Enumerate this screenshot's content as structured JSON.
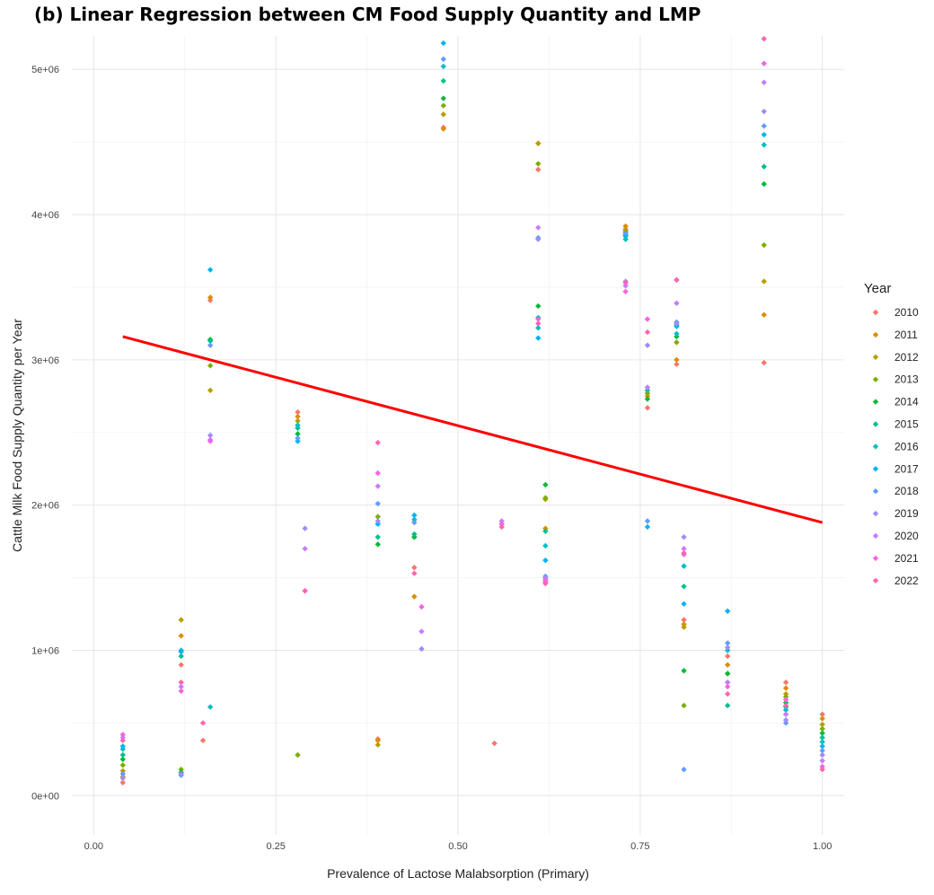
{
  "chart_data": {
    "type": "scatter",
    "title": "(b) Linear Regression between CM Food Supply Quantity and LMP",
    "xlabel": "Prevalence of Lactose Malabsorption (Primary)",
    "ylabel": "Cattle Milk Food Supply Quantity per Year",
    "xlim": [
      -0.03,
      1.03
    ],
    "ylim": [
      -270000,
      5230000
    ],
    "x_ticks": [
      {
        "value": 0,
        "label": "0.00"
      },
      {
        "value": 0.25,
        "label": "0.25"
      },
      {
        "value": 0.5,
        "label": "0.50"
      },
      {
        "value": 0.75,
        "label": "0.75"
      },
      {
        "value": 1,
        "label": "1.00"
      }
    ],
    "y_ticks": [
      {
        "value": 0,
        "label": "0e+00"
      },
      {
        "value": 1000000,
        "label": "1e+06"
      },
      {
        "value": 2000000,
        "label": "2e+06"
      },
      {
        "value": 3000000,
        "label": "3e+06"
      },
      {
        "value": 4000000,
        "label": "4e+06"
      },
      {
        "value": 5000000,
        "label": "5e+06"
      }
    ],
    "grid": true,
    "legend": {
      "title": "Year",
      "position": "right"
    },
    "series_colors": [
      "#F8766D",
      "#DE8C00",
      "#B79F00",
      "#7CAE00",
      "#00BA38",
      "#00C08B",
      "#00BFC4",
      "#00B4F0",
      "#619CFF",
      "#9F8CFF",
      "#C77CFF",
      "#F564E3",
      "#FF64B0"
    ],
    "series": [
      {
        "name": "2010",
        "points": [
          [
            0.04,
            90000
          ],
          [
            0.12,
            900000
          ],
          [
            0.15,
            380000
          ],
          [
            0.16,
            3410000
          ],
          [
            0.28,
            2640000
          ],
          [
            0.39,
            390000
          ],
          [
            0.44,
            1570000
          ],
          [
            0.48,
            4600000
          ],
          [
            0.55,
            360000
          ],
          [
            0.61,
            4310000
          ],
          [
            0.62,
            1470000
          ],
          [
            0.73,
            3900000
          ],
          [
            0.76,
            2670000
          ],
          [
            0.8,
            2970000
          ],
          [
            0.81,
            1210000
          ],
          [
            0.87,
            960000
          ],
          [
            0.92,
            2980000
          ],
          [
            0.95,
            780000
          ],
          [
            1.0,
            560000
          ]
        ]
      },
      {
        "name": "2011",
        "points": [
          [
            0.04,
            130000
          ],
          [
            0.12,
            1100000
          ],
          [
            0.16,
            3430000
          ],
          [
            0.28,
            2610000
          ],
          [
            0.39,
            380000
          ],
          [
            0.44,
            1370000
          ],
          [
            0.48,
            4590000
          ],
          [
            0.61,
            4490000
          ],
          [
            0.62,
            1840000
          ],
          [
            0.73,
            3920000
          ],
          [
            0.76,
            2750000
          ],
          [
            0.8,
            3000000
          ],
          [
            0.81,
            1180000
          ],
          [
            0.87,
            900000
          ],
          [
            0.92,
            3310000
          ],
          [
            0.95,
            740000
          ],
          [
            1.0,
            530000
          ]
        ]
      },
      {
        "name": "2012",
        "points": [
          [
            0.04,
            170000
          ],
          [
            0.12,
            1210000
          ],
          [
            0.16,
            2790000
          ],
          [
            0.28,
            2580000
          ],
          [
            0.39,
            350000
          ],
          [
            0.48,
            4690000
          ],
          [
            0.61,
            4490000
          ],
          [
            0.62,
            2040000
          ],
          [
            0.73,
            3890000
          ],
          [
            0.76,
            2790000
          ],
          [
            0.81,
            1160000
          ],
          [
            0.87,
            840000
          ],
          [
            0.92,
            3540000
          ],
          [
            0.95,
            700000
          ],
          [
            1.0,
            490000
          ]
        ]
      },
      {
        "name": "2013",
        "points": [
          [
            0.04,
            210000
          ],
          [
            0.12,
            180000
          ],
          [
            0.16,
            2960000
          ],
          [
            0.28,
            280000
          ],
          [
            0.39,
            1920000
          ],
          [
            0.44,
            1780000
          ],
          [
            0.48,
            4750000
          ],
          [
            0.61,
            4350000
          ],
          [
            0.62,
            2050000
          ],
          [
            0.73,
            3880000
          ],
          [
            0.76,
            2770000
          ],
          [
            0.8,
            3120000
          ],
          [
            0.81,
            620000
          ],
          [
            0.87,
            780000
          ],
          [
            0.92,
            3790000
          ],
          [
            0.95,
            680000
          ],
          [
            1.0,
            460000
          ]
        ]
      },
      {
        "name": "2014",
        "points": [
          [
            0.04,
            250000
          ],
          [
            0.12,
            160000
          ],
          [
            0.16,
            3140000
          ],
          [
            0.28,
            2490000
          ],
          [
            0.39,
            1730000
          ],
          [
            0.44,
            1780000
          ],
          [
            0.48,
            4800000
          ],
          [
            0.61,
            3370000
          ],
          [
            0.62,
            2140000
          ],
          [
            0.73,
            3860000
          ],
          [
            0.76,
            2730000
          ],
          [
            0.8,
            3160000
          ],
          [
            0.81,
            860000
          ],
          [
            0.87,
            840000
          ],
          [
            0.92,
            4210000
          ],
          [
            0.95,
            640000
          ],
          [
            1.0,
            430000
          ]
        ]
      },
      {
        "name": "2015",
        "points": [
          [
            0.04,
            280000
          ],
          [
            0.12,
            960000
          ],
          [
            0.16,
            3130000
          ],
          [
            0.28,
            2530000
          ],
          [
            0.39,
            1780000
          ],
          [
            0.44,
            1800000
          ],
          [
            0.48,
            4920000
          ],
          [
            0.61,
            3290000
          ],
          [
            0.62,
            1820000
          ],
          [
            0.73,
            3850000
          ],
          [
            0.76,
            2810000
          ],
          [
            0.8,
            3240000
          ],
          [
            0.81,
            1440000
          ],
          [
            0.87,
            620000
          ],
          [
            0.92,
            4330000
          ],
          [
            0.95,
            610000
          ],
          [
            1.0,
            400000
          ]
        ]
      },
      {
        "name": "2016",
        "points": [
          [
            0.04,
            320000
          ],
          [
            0.12,
            1000000
          ],
          [
            0.16,
            610000
          ],
          [
            0.28,
            2550000
          ],
          [
            0.39,
            1870000
          ],
          [
            0.44,
            1900000
          ],
          [
            0.48,
            5020000
          ],
          [
            0.61,
            3220000
          ],
          [
            0.62,
            1720000
          ],
          [
            0.73,
            3830000
          ],
          [
            0.76,
            2790000
          ],
          [
            0.8,
            3180000
          ],
          [
            0.81,
            1580000
          ],
          [
            0.87,
            1000000
          ],
          [
            0.92,
            4480000
          ],
          [
            0.95,
            590000
          ],
          [
            1.0,
            370000
          ]
        ]
      },
      {
        "name": "2017",
        "points": [
          [
            0.04,
            340000
          ],
          [
            0.12,
            990000
          ],
          [
            0.16,
            3620000
          ],
          [
            0.28,
            2440000
          ],
          [
            0.39,
            1870000
          ],
          [
            0.44,
            1930000
          ],
          [
            0.48,
            5180000
          ],
          [
            0.61,
            3150000
          ],
          [
            0.62,
            1620000
          ],
          [
            0.73,
            3860000
          ],
          [
            0.76,
            1850000
          ],
          [
            0.8,
            3230000
          ],
          [
            0.81,
            1320000
          ],
          [
            0.87,
            1270000
          ],
          [
            0.92,
            4550000
          ],
          [
            0.95,
            560000
          ],
          [
            1.0,
            340000
          ]
        ]
      },
      {
        "name": "2018",
        "points": [
          [
            0.04,
            150000
          ],
          [
            0.12,
            140000
          ],
          [
            0.16,
            3100000
          ],
          [
            0.28,
            2460000
          ],
          [
            0.39,
            2010000
          ],
          [
            0.44,
            1880000
          ],
          [
            0.48,
            5070000
          ],
          [
            0.61,
            3840000
          ],
          [
            0.62,
            1510000
          ],
          [
            0.73,
            3870000
          ],
          [
            0.76,
            1890000
          ],
          [
            0.8,
            3260000
          ],
          [
            0.81,
            180000
          ],
          [
            0.87,
            1050000
          ],
          [
            0.92,
            4610000
          ],
          [
            0.95,
            500000
          ],
          [
            1.0,
            310000
          ]
        ]
      },
      {
        "name": "2019",
        "points": [
          [
            0.04,
            120000
          ],
          [
            0.12,
            150000
          ],
          [
            0.16,
            2480000
          ],
          [
            0.29,
            1840000
          ],
          [
            0.39,
            1890000
          ],
          [
            0.45,
            1010000
          ],
          [
            0.56,
            1870000
          ],
          [
            0.61,
            3830000
          ],
          [
            0.62,
            1500000
          ],
          [
            0.73,
            3540000
          ],
          [
            0.76,
            3100000
          ],
          [
            0.8,
            3250000
          ],
          [
            0.81,
            1780000
          ],
          [
            0.87,
            1020000
          ],
          [
            0.92,
            4710000
          ],
          [
            0.95,
            520000
          ],
          [
            1.0,
            280000
          ]
        ]
      },
      {
        "name": "2020",
        "points": [
          [
            0.04,
            400000
          ],
          [
            0.12,
            750000
          ],
          [
            0.16,
            2450000
          ],
          [
            0.29,
            1700000
          ],
          [
            0.39,
            2130000
          ],
          [
            0.45,
            1130000
          ],
          [
            0.56,
            1890000
          ],
          [
            0.61,
            3910000
          ],
          [
            0.62,
            1490000
          ],
          [
            0.73,
            3510000
          ],
          [
            0.76,
            2810000
          ],
          [
            0.8,
            3390000
          ],
          [
            0.81,
            1700000
          ],
          [
            0.87,
            780000
          ],
          [
            0.92,
            4910000
          ],
          [
            0.95,
            560000
          ],
          [
            1.0,
            240000
          ]
        ]
      },
      {
        "name": "2021",
        "points": [
          [
            0.04,
            420000
          ],
          [
            0.12,
            720000
          ],
          [
            0.16,
            2440000
          ],
          [
            0.29,
            1410000
          ],
          [
            0.39,
            2220000
          ],
          [
            0.45,
            1300000
          ],
          [
            0.56,
            1870000
          ],
          [
            0.61,
            3280000
          ],
          [
            0.62,
            1480000
          ],
          [
            0.73,
            3470000
          ],
          [
            0.76,
            3280000
          ],
          [
            0.8,
            3550000
          ],
          [
            0.81,
            1660000
          ],
          [
            0.87,
            750000
          ],
          [
            0.92,
            5040000
          ],
          [
            0.95,
            660000
          ],
          [
            1.0,
            200000
          ]
        ]
      },
      {
        "name": "2022",
        "points": [
          [
            0.04,
            380000
          ],
          [
            0.12,
            780000
          ],
          [
            0.15,
            500000
          ],
          [
            0.29,
            1410000
          ],
          [
            0.39,
            2430000
          ],
          [
            0.44,
            1530000
          ],
          [
            0.56,
            1850000
          ],
          [
            0.61,
            3250000
          ],
          [
            0.62,
            1460000
          ],
          [
            0.73,
            3530000
          ],
          [
            0.76,
            3190000
          ],
          [
            0.8,
            3550000
          ],
          [
            0.81,
            1670000
          ],
          [
            0.87,
            700000
          ],
          [
            0.92,
            5210000
          ],
          [
            0.95,
            620000
          ],
          [
            1.0,
            180000
          ]
        ]
      }
    ],
    "regression_line": {
      "x": [
        0.04,
        1.0
      ],
      "y": [
        3160000,
        1880000
      ],
      "color": "#FF0000"
    }
  }
}
